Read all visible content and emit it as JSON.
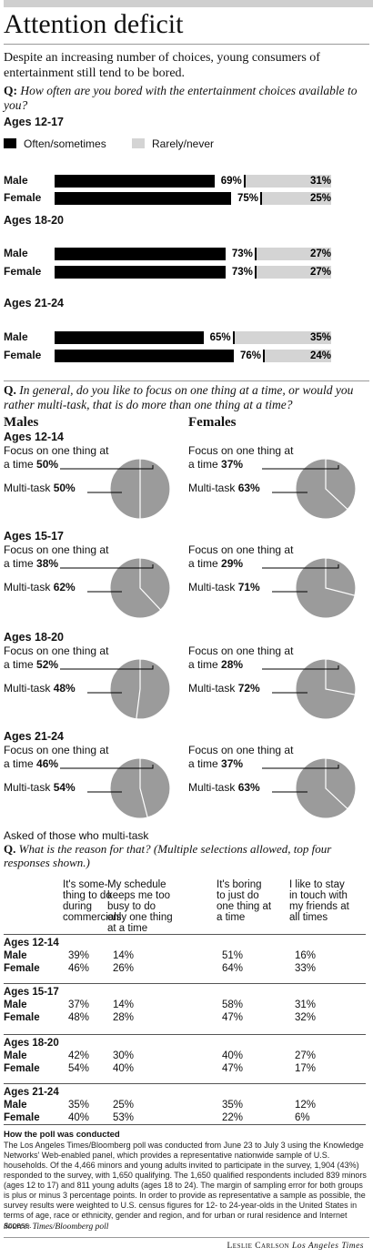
{
  "title": "Attention deficit",
  "intro": "Despite an increasing number of choices, young consumers of entertainment still tend to be bored.",
  "q1": {
    "prefix": "Q:",
    "text": "How often are you bored with the entertainment choices available to you?"
  },
  "legend": {
    "often": "Often/sometimes",
    "rarely": "Rarely/never",
    "often_color": "#000000",
    "rarely_color": "#d4d4d4"
  },
  "q2": {
    "prefix": "Q.",
    "text": "In general, do you like to focus on one thing at a time, or would you rather multi-task, that is do more than one thing at a time?"
  },
  "males_label": "Males",
  "females_label": "Females",
  "focus_label": "Focus on one thing at",
  "focus_label2": "a time",
  "multi_label": "Multi-task",
  "q3_intro": "Asked of those who multi-task",
  "q3": {
    "prefix": "Q.",
    "text": "What is the reason for that? (Multiple selections allowed, top four responses shown.)"
  },
  "method_head": "How the poll was conducted",
  "method_text": "The Los Angeles Times/Bloomberg poll was conducted from June 23 to July 3 using the Knowledge Networks' Web-enabled panel, which provides a representative nationwide sample of U.S. households. Of the 4,466 minors and young adults invited to participate in the survey, 1,904 (43%) responded to the survey, with 1,650 qualifying. The 1,650 qualified respondents included 839 minors (ages 12 to 17) and 811 young adults (ages 18 to 24). The margin of sampling error for both groups is plus or minus 3 percentage points. In order to provide as representative a sample as possible, the survey results were weighted to U.S. census figures for 12- to 24-year-olds in the United States in terms of age, race or ethnicity, gender and region, and for urban or rural residence and Internet access.",
  "source": "Source: Times/Bloomberg poll",
  "credit_name": "Leslie Carlson",
  "credit_org": "Los Angeles Times",
  "chart_data": [
    {
      "type": "bar",
      "stacked": true,
      "groups": [
        {
          "age": "Ages 12-17",
          "rows": [
            {
              "label": "Male",
              "often": "69%",
              "rarely": "31%",
              "often_val": 69
            },
            {
              "label": "Female",
              "often": "75%",
              "rarely": "25%",
              "often_val": 75
            }
          ]
        },
        {
          "age": "Ages 18-20",
          "rows": [
            {
              "label": "Male",
              "often": "73%",
              "rarely": "27%",
              "often_val": 73
            },
            {
              "label": "Female",
              "often": "73%",
              "rarely": "27%",
              "often_val": 73
            }
          ]
        },
        {
          "age": "Ages 21-24",
          "rows": [
            {
              "label": "Male",
              "often": "65%",
              "rarely": "35%",
              "often_val": 65
            },
            {
              "label": "Female",
              "often": "76%",
              "rarely": "24%",
              "often_val": 76
            }
          ]
        }
      ]
    },
    {
      "type": "pie",
      "pies": [
        {
          "age": "Ages 12-14",
          "male": {
            "focus": "50%",
            "multi": "50%",
            "focus_val": 50
          },
          "female": {
            "focus": "37%",
            "multi": "63%",
            "focus_val": 37
          }
        },
        {
          "age": "Ages 15-17",
          "male": {
            "focus": "38%",
            "multi": "62%",
            "focus_val": 38
          },
          "female": {
            "focus": "29%",
            "multi": "71%",
            "focus_val": 29
          }
        },
        {
          "age": "Ages 18-20",
          "male": {
            "focus": "52%",
            "multi": "48%",
            "focus_val": 52
          },
          "female": {
            "focus": "28%",
            "multi": "72%",
            "focus_val": 28
          }
        },
        {
          "age": "Ages 21-24",
          "male": {
            "focus": "46%",
            "multi": "54%",
            "focus_val": 46
          },
          "female": {
            "focus": "37%",
            "multi": "63%",
            "focus_val": 37
          }
        }
      ]
    },
    {
      "type": "table",
      "columns": [
        [
          "It's some-",
          "thing to do",
          "during",
          "commercials"
        ],
        [
          "My schedule",
          "keeps me too",
          "busy to do",
          "only one thing",
          "at a time"
        ],
        [
          "It's boring",
          "to just do",
          "one thing at",
          "a time"
        ],
        [
          "I like to stay",
          "in touch with",
          "my friends at",
          "all times"
        ]
      ],
      "groups": [
        {
          "age": "Ages 12-14",
          "male": [
            "39%",
            "14%",
            "51%",
            "16%"
          ],
          "female": [
            "46%",
            "26%",
            "64%",
            "33%"
          ]
        },
        {
          "age": "Ages 15-17",
          "male": [
            "37%",
            "14%",
            "58%",
            "31%"
          ],
          "female": [
            "48%",
            "28%",
            "47%",
            "32%"
          ]
        },
        {
          "age": "Ages 18-20",
          "male": [
            "42%",
            "30%",
            "40%",
            "27%"
          ],
          "female": [
            "54%",
            "40%",
            "47%",
            "17%"
          ]
        },
        {
          "age": "Ages 21-24",
          "male": [
            "35%",
            "25%",
            "35%",
            "12%"
          ],
          "female": [
            "40%",
            "53%",
            "22%",
            "6%"
          ]
        }
      ],
      "row_labels": {
        "male": "Male",
        "female": "Female"
      }
    }
  ]
}
